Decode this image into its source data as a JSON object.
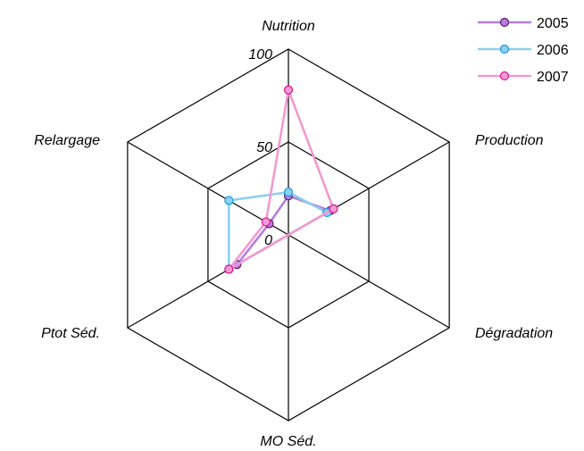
{
  "chart_data": {
    "type": "radar",
    "axes": [
      "Nutrition",
      "Production",
      "Dégradation",
      "MO Séd.",
      "Ptot Séd.",
      "Relargage"
    ],
    "rlim": [
      0,
      100
    ],
    "ticks": [
      "0",
      "50",
      "100"
    ],
    "tick_values": [
      0,
      50,
      100
    ],
    "series": [
      {
        "name": "2005",
        "color": "#b57ee0",
        "marker_edge": "#5a1a6e",
        "values": [
          21,
          26,
          0,
          0,
          32,
          12
        ]
      },
      {
        "name": "2006",
        "color": "#8ecff0",
        "marker_edge": "#1a9ed8",
        "values": [
          23,
          24,
          0,
          0,
          37,
          37
        ]
      },
      {
        "name": "2007",
        "color": "#f29ad0",
        "marker_edge": "#e0109a",
        "values": [
          78,
          28,
          0,
          0,
          37,
          14
        ]
      }
    ],
    "legend_position": "top-right",
    "grid": true
  }
}
